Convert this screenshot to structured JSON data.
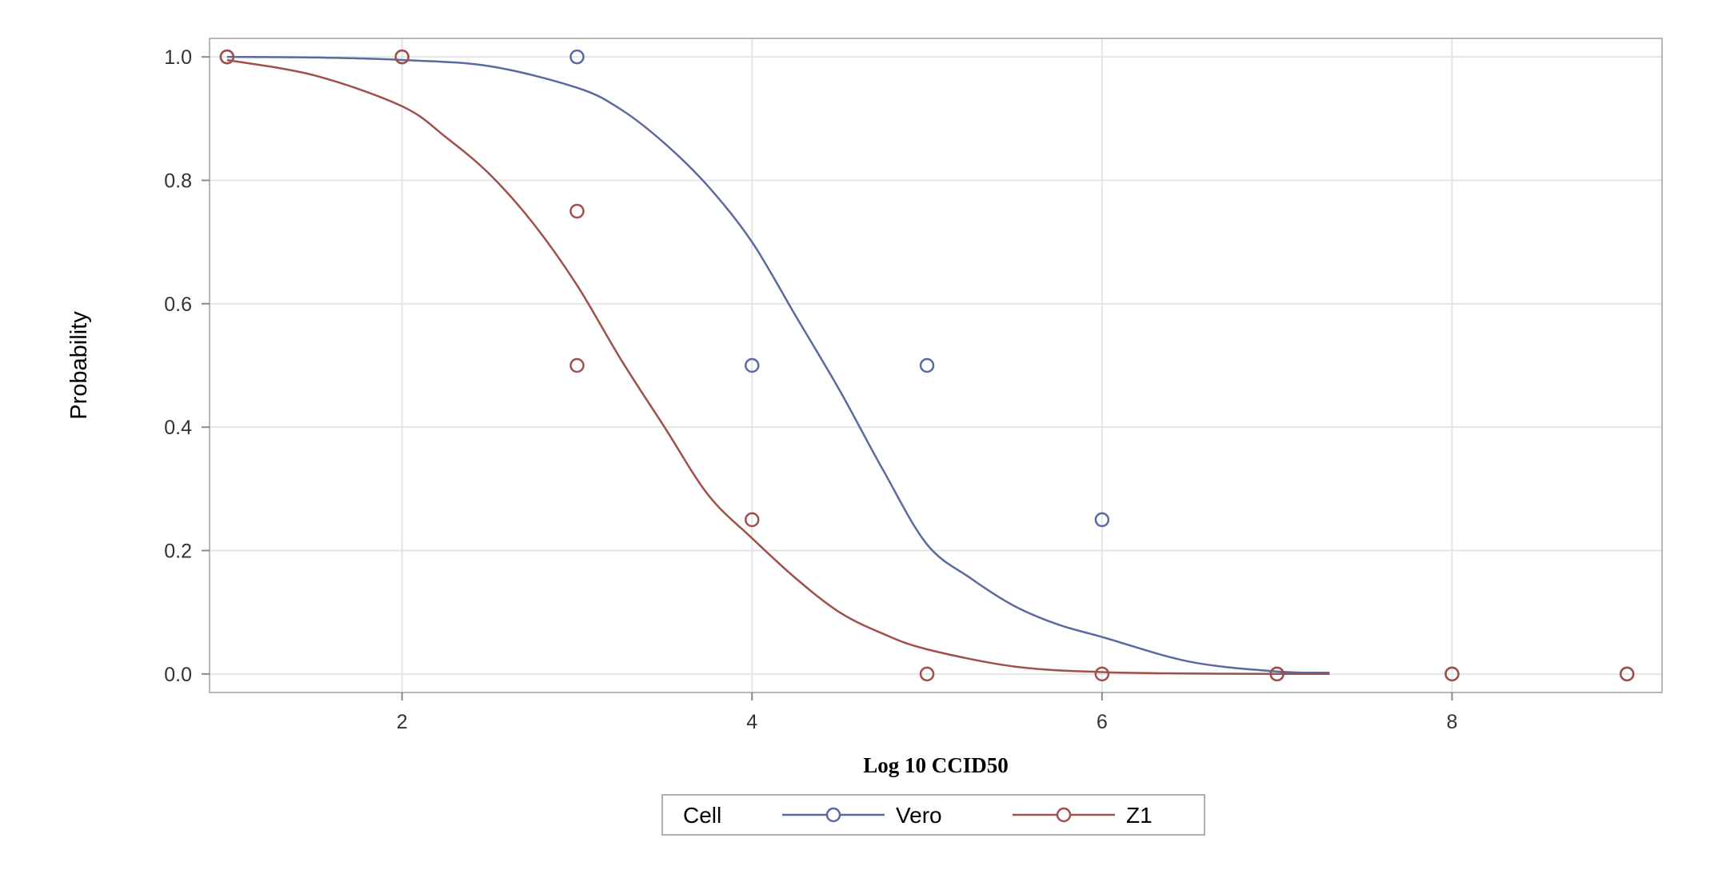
{
  "chart_data": {
    "type": "line",
    "title": "",
    "xlabel": "Log 10 CCID50",
    "ylabel": "Probability",
    "xlim": [
      0.9,
      9.2
    ],
    "ylim": [
      -0.03,
      1.03
    ],
    "xticks": [
      2,
      4,
      6,
      8
    ],
    "xtick_labels": [
      "2",
      "4",
      "6",
      "8"
    ],
    "yticks": [
      0.0,
      0.2,
      0.4,
      0.6,
      0.8,
      1.0
    ],
    "ytick_labels": [
      "0.0",
      "0.2",
      "0.4",
      "0.6",
      "0.8",
      "1.0"
    ],
    "grid": true,
    "legend": {
      "title": "Cell",
      "placement": "bottom-center"
    },
    "series": [
      {
        "name": "Vero",
        "color": "#5a6aa0",
        "curve": {
          "x": [
            1.0,
            1.5,
            2.0,
            2.5,
            3.0,
            3.25,
            3.5,
            3.75,
            4.0,
            4.25,
            4.5,
            4.75,
            5.0,
            5.25,
            5.5,
            5.75,
            6.0,
            6.5,
            7.0,
            7.3
          ],
          "y": [
            1.0,
            0.999,
            0.995,
            0.985,
            0.95,
            0.915,
            0.86,
            0.79,
            0.7,
            0.58,
            0.46,
            0.33,
            0.21,
            0.155,
            0.11,
            0.08,
            0.06,
            0.02,
            0.004,
            0.002
          ]
        },
        "points": {
          "x": [
            3,
            4,
            5,
            6
          ],
          "y": [
            1.0,
            0.5,
            0.5,
            0.25
          ]
        }
      },
      {
        "name": "Z1",
        "color": "#a0504a",
        "curve": {
          "x": [
            1.0,
            1.5,
            2.0,
            2.25,
            2.5,
            2.75,
            3.0,
            3.25,
            3.5,
            3.75,
            4.0,
            4.25,
            4.5,
            4.75,
            5.0,
            5.5,
            6.0,
            6.5,
            7.0,
            7.3
          ],
          "y": [
            0.995,
            0.97,
            0.92,
            0.87,
            0.81,
            0.73,
            0.63,
            0.51,
            0.4,
            0.29,
            0.22,
            0.155,
            0.1,
            0.065,
            0.04,
            0.012,
            0.003,
            0.0008,
            0.0002,
            0.0001
          ]
        },
        "points": {
          "x": [
            1,
            2,
            3,
            3,
            4,
            5,
            6,
            7,
            8,
            9
          ],
          "y": [
            1.0,
            1.0,
            0.75,
            0.5,
            0.25,
            0.0,
            0.0,
            0.0,
            0.0,
            0.0
          ]
        }
      }
    ],
    "extra_points": [
      {
        "series": "Vero",
        "x": 1,
        "y": 1.0
      },
      {
        "series": "Vero",
        "x": 2,
        "y": 1.0
      },
      {
        "series": "Vero",
        "x": 7,
        "y": 0.0
      },
      {
        "series": "Vero",
        "x": 8,
        "y": 0.0
      },
      {
        "series": "Vero",
        "x": 9,
        "y": 0.0
      }
    ]
  }
}
